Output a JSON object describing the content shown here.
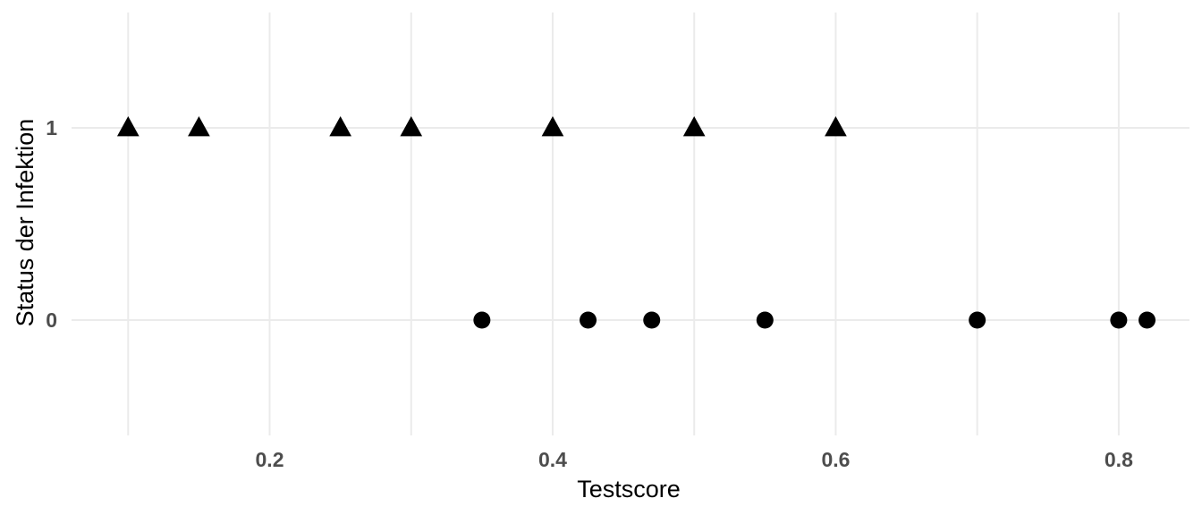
{
  "chart_data": {
    "type": "scatter",
    "title": "",
    "xlabel": "Testscore",
    "ylabel": "Status der Infektion",
    "xlim": [
      0.06,
      0.85
    ],
    "ylim": [
      -0.6,
      1.6
    ],
    "x_ticks": [
      0.2,
      0.4,
      0.6,
      0.8
    ],
    "x_tick_labels": [
      "0.2",
      "0.4",
      "0.6",
      "0.8"
    ],
    "y_ticks": [
      0,
      1
    ],
    "y_tick_labels": [
      "0",
      "1"
    ],
    "grid": true,
    "legend": "none",
    "point_color": "#000000",
    "series": [
      {
        "marker": "triangle",
        "points": [
          {
            "x": 0.1,
            "y": 1
          },
          {
            "x": 0.15,
            "y": 1
          },
          {
            "x": 0.25,
            "y": 1
          },
          {
            "x": 0.3,
            "y": 1
          },
          {
            "x": 0.4,
            "y": 1
          },
          {
            "x": 0.5,
            "y": 1
          },
          {
            "x": 0.6,
            "y": 1
          }
        ]
      },
      {
        "marker": "circle",
        "points": [
          {
            "x": 0.35,
            "y": 0
          },
          {
            "x": 0.425,
            "y": 0
          },
          {
            "x": 0.47,
            "y": 0
          },
          {
            "x": 0.55,
            "y": 0
          },
          {
            "x": 0.7,
            "y": 0
          },
          {
            "x": 0.8,
            "y": 0
          },
          {
            "x": 0.82,
            "y": 0
          }
        ]
      }
    ]
  }
}
